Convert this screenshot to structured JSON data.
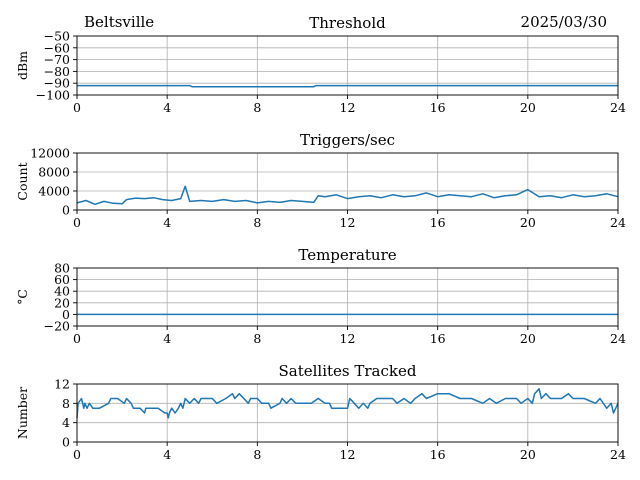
{
  "header": {
    "station": "Beltsville",
    "date": "2025/03/30"
  },
  "colors": {
    "series": "#1f77b4",
    "grid": "#b0b0b0",
    "axes": "#000000"
  },
  "chart_data": [
    {
      "type": "line",
      "title": "Threshold",
      "xlabel": "",
      "ylabel": "dBm",
      "xlim": [
        0,
        24
      ],
      "ylim": [
        -100,
        -50
      ],
      "xticks": [
        "0",
        "4",
        "8",
        "12",
        "16",
        "20",
        "24"
      ],
      "yticks": [
        "−50",
        "−60",
        "−70",
        "−80",
        "−90",
        "−100"
      ],
      "grid": true,
      "series": [
        {
          "x": [
            0,
            2,
            2.1,
            5,
            5.1,
            10.5,
            10.6,
            24
          ],
          "y": [
            -92,
            -92,
            -92,
            -92,
            -93,
            -93,
            -92,
            -92
          ]
        }
      ]
    },
    {
      "type": "line",
      "title": "Triggers/sec",
      "xlabel": "",
      "ylabel": "Count",
      "xlim": [
        0,
        24
      ],
      "ylim": [
        0,
        12000
      ],
      "xticks": [
        "0",
        "4",
        "8",
        "12",
        "16",
        "20",
        "24"
      ],
      "yticks": [
        "12000",
        "8000",
        "4000",
        "0"
      ],
      "grid": true,
      "series": [
        {
          "x": [
            0,
            0.4,
            0.8,
            1.2,
            1.6,
            2.0,
            2.2,
            2.6,
            3.0,
            3.4,
            3.8,
            4.2,
            4.6,
            4.8,
            5.0,
            5.5,
            6.0,
            6.5,
            7.0,
            7.5,
            8.0,
            8.5,
            9.0,
            9.5,
            10.0,
            10.5,
            10.7,
            11.0,
            11.5,
            12.0,
            12.5,
            13.0,
            13.5,
            14.0,
            14.5,
            15.0,
            15.5,
            16.0,
            16.5,
            17.0,
            17.5,
            18.0,
            18.5,
            19.0,
            19.5,
            20.0,
            20.5,
            21.0,
            21.5,
            22.0,
            22.5,
            23.0,
            23.5,
            24.0
          ],
          "y": [
            1500,
            2000,
            1200,
            1800,
            1400,
            1300,
            2200,
            2500,
            2400,
            2600,
            2200,
            2000,
            2400,
            5000,
            1800,
            2000,
            1800,
            2200,
            1800,
            2000,
            1500,
            1800,
            1600,
            2000,
            1800,
            1600,
            3000,
            2800,
            3200,
            2400,
            2800,
            3000,
            2600,
            3200,
            2800,
            3000,
            3600,
            2800,
            3200,
            3000,
            2800,
            3400,
            2600,
            3000,
            3200,
            4300,
            2800,
            3000,
            2600,
            3200,
            2800,
            3000,
            3400,
            2800
          ]
        }
      ]
    },
    {
      "type": "line",
      "title": "Temperature",
      "xlabel": "",
      "ylabel": "°C",
      "xlim": [
        0,
        24
      ],
      "ylim": [
        -20,
        80
      ],
      "xticks": [
        "0",
        "4",
        "8",
        "12",
        "16",
        "20",
        "24"
      ],
      "yticks": [
        "80",
        "60",
        "40",
        "20",
        "0",
        "−20"
      ],
      "grid": true,
      "series": [
        {
          "x": [
            0,
            24
          ],
          "y": [
            0,
            0
          ]
        }
      ]
    },
    {
      "type": "line",
      "title": "Satellites Tracked",
      "xlabel": "",
      "ylabel": "Number",
      "xlim": [
        0,
        24
      ],
      "ylim": [
        0,
        12
      ],
      "xticks": [
        "0",
        "4",
        "8",
        "12",
        "16",
        "20",
        "24"
      ],
      "yticks": [
        "12",
        "8",
        "4",
        "0"
      ],
      "grid": true,
      "series": [
        {
          "x": [
            0,
            0.05,
            0.2,
            0.3,
            0.35,
            0.45,
            0.55,
            0.7,
            1.0,
            1.4,
            1.5,
            1.8,
            2.1,
            2.2,
            2.4,
            2.5,
            2.8,
            3.0,
            3.05,
            3.2,
            3.6,
            3.9,
            4.0,
            4.05,
            4.1,
            4.2,
            4.35,
            4.5,
            4.6,
            4.7,
            4.8,
            5.0,
            5.2,
            5.4,
            5.5,
            5.7,
            6.0,
            6.2,
            6.6,
            6.9,
            7.0,
            7.2,
            7.4,
            7.6,
            7.7,
            8.0,
            8.2,
            8.5,
            8.6,
            9.0,
            9.1,
            9.3,
            9.5,
            9.7,
            10.0,
            10.2,
            10.4,
            10.7,
            11.0,
            11.2,
            11.3,
            11.6,
            12.0,
            12.1,
            12.3,
            12.5,
            12.7,
            12.9,
            13.0,
            13.3,
            13.5,
            14.0,
            14.2,
            14.5,
            14.8,
            15.0,
            15.3,
            15.5,
            16.0,
            16.5,
            17.0,
            17.5,
            18.0,
            18.3,
            18.6,
            19.0,
            19.5,
            19.7,
            20.0,
            20.2,
            20.3,
            20.5,
            20.6,
            20.8,
            21.0,
            21.5,
            21.8,
            22.0,
            22.5,
            23.0,
            23.2,
            23.5,
            23.7,
            23.8,
            24.0
          ],
          "y": [
            5,
            8,
            9,
            7,
            8,
            7,
            8,
            7,
            7,
            8,
            9,
            9,
            8,
            9,
            8,
            7,
            7,
            6,
            7,
            7,
            7,
            6,
            6,
            5,
            6,
            7,
            6,
            7,
            8,
            7,
            9,
            8,
            9,
            8,
            9,
            9,
            9,
            8,
            9,
            10,
            9,
            10,
            9,
            8,
            9,
            9,
            8,
            8,
            7,
            8,
            9,
            8,
            9,
            8,
            8,
            8,
            8,
            9,
            8,
            8,
            7,
            7,
            7,
            9,
            8,
            7,
            8,
            7,
            8,
            9,
            9,
            9,
            8,
            9,
            8,
            9,
            10,
            9,
            10,
            10,
            9,
            9,
            8,
            9,
            8,
            9,
            9,
            8,
            9,
            8,
            10,
            11,
            9,
            10,
            9,
            9,
            10,
            9,
            9,
            8,
            9,
            7,
            8,
            6,
            8
          ]
        }
      ]
    }
  ]
}
